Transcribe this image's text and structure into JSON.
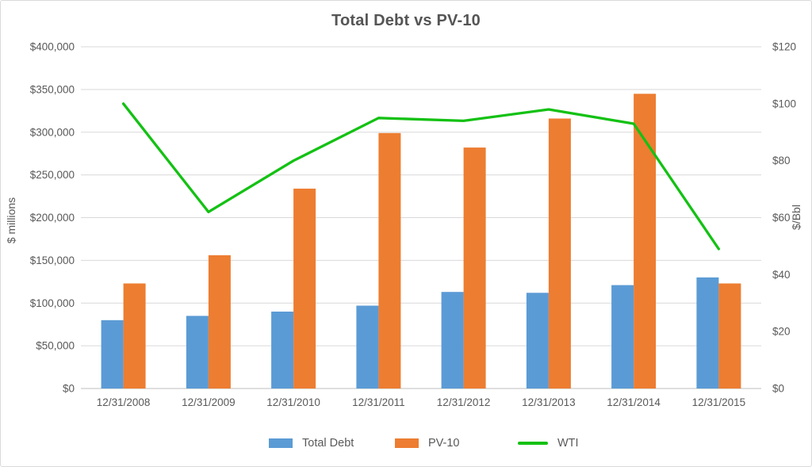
{
  "chart_data": {
    "type": "bar-line-combo",
    "title": "Total Debt vs PV-10",
    "categories": [
      "12/31/2008",
      "12/31/2009",
      "12/31/2010",
      "12/31/2011",
      "12/31/2012",
      "12/31/2013",
      "12/31/2014",
      "12/31/2015"
    ],
    "series": [
      {
        "name": "Total Debt",
        "render": "bar",
        "yaxis": "left",
        "color": "#5B9BD5",
        "values": [
          80000,
          85000,
          90000,
          97000,
          113000,
          112000,
          121000,
          130000
        ]
      },
      {
        "name": "PV-10",
        "render": "bar",
        "yaxis": "left",
        "color": "#ED7D31",
        "values": [
          123000,
          156000,
          234000,
          299000,
          282000,
          316000,
          345000,
          123000
        ]
      },
      {
        "name": "WTI",
        "render": "line",
        "yaxis": "right",
        "color": "#14C114",
        "values": [
          100,
          62,
          80,
          95,
          94,
          98,
          93,
          49
        ]
      }
    ],
    "left_axis": {
      "label": "$ millions",
      "min": 0,
      "max": 400000,
      "step": 50000,
      "ticks": [
        {
          "value": 0,
          "label": "$0"
        },
        {
          "value": 50000,
          "label": "$50,000"
        },
        {
          "value": 100000,
          "label": "$100,000"
        },
        {
          "value": 150000,
          "label": "$150,000"
        },
        {
          "value": 200000,
          "label": "$200,000"
        },
        {
          "value": 250000,
          "label": "$250,000"
        },
        {
          "value": 300000,
          "label": "$300,000"
        },
        {
          "value": 350000,
          "label": "$350,000"
        },
        {
          "value": 400000,
          "label": "$400,000"
        }
      ]
    },
    "right_axis": {
      "label": "$/Bbl",
      "min": 0,
      "max": 120,
      "step": 20,
      "ticks": [
        {
          "value": 0,
          "label": "$0"
        },
        {
          "value": 20,
          "label": "$20"
        },
        {
          "value": 40,
          "label": "$40"
        },
        {
          "value": 60,
          "label": "$60"
        },
        {
          "value": 80,
          "label": "$80"
        },
        {
          "value": 100,
          "label": "$100"
        },
        {
          "value": 120,
          "label": "$120"
        }
      ]
    },
    "legend_position": "bottom",
    "grid": true
  },
  "colors": {
    "text": "#595959",
    "title": "#555555",
    "gridline": "#D9D9D9",
    "axis_line": "#BFBFBF",
    "background": "#FFFFFF",
    "border": "#D9D9D9"
  }
}
